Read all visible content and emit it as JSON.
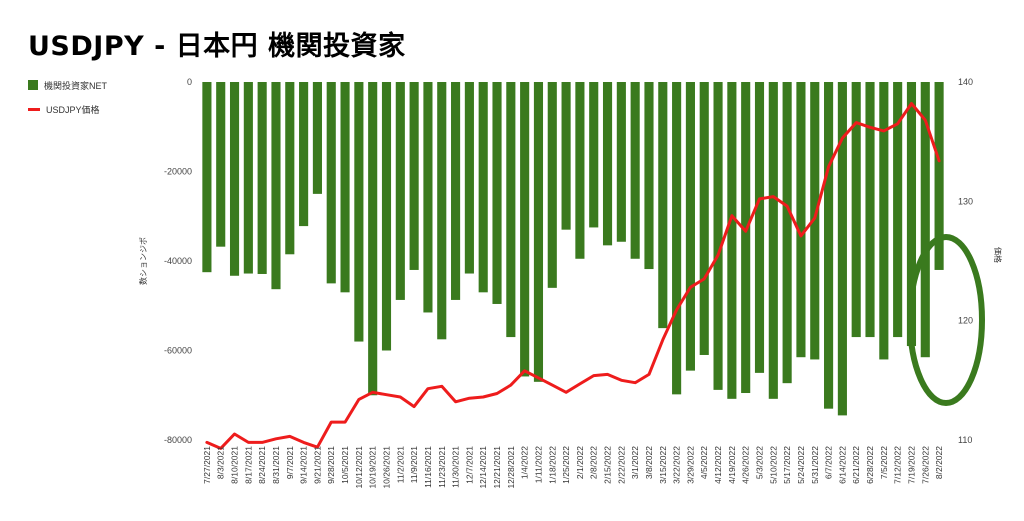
{
  "title": "USDJPY - 日本円 機関投資家",
  "legend": {
    "bar_label": "機関投資家NET",
    "line_label": "USDJPY価格"
  },
  "chart_data": {
    "type": "bar+line",
    "title": "USDJPY - 日本円 機関投資家",
    "ylabel_left": "数ションジポ",
    "ylabel_right": "価格",
    "ylim_left": [
      -80000,
      0
    ],
    "ylim_right": [
      110,
      140
    ],
    "y_ticks_left": [
      "0",
      "-20000",
      "-40000",
      "-60000",
      "-80000"
    ],
    "y_ticks_right": [
      "140",
      "130",
      "120",
      "110"
    ],
    "x_tick_labels": [
      "7/27/2021",
      "8/3/2021",
      "8/10/2021",
      "8/17/2021",
      "8/24/2021",
      "8/31/2021",
      "9/7/2021",
      "9/14/2021",
      "9/21/2021",
      "9/28/2021",
      "10/5/2021",
      "10/12/2021",
      "10/19/2021",
      "10/26/2021",
      "11/2/2021",
      "11/9/2021",
      "11/16/2021",
      "11/23/2021",
      "11/30/2021",
      "12/7/2021",
      "12/14/2021",
      "12/21/2021",
      "12/28/2021",
      "1/4/2022",
      "1/11/2022",
      "1/18/2022",
      "1/25/2022",
      "2/1/2022",
      "2/8/2022",
      "2/15/2022",
      "2/22/2022",
      "3/1/2022",
      "3/8/2022",
      "3/15/2022",
      "3/22/2022",
      "3/29/2022",
      "4/5/2022",
      "4/12/2022",
      "4/19/2022",
      "4/26/2022",
      "5/3/2022",
      "5/10/2022",
      "5/17/2022",
      "5/24/2022",
      "5/31/2022",
      "6/7/2022",
      "6/14/2022",
      "6/21/2022",
      "6/28/2022",
      "7/5/2022",
      "7/12/2022",
      "7/19/2022",
      "7/26/2022",
      "8/2/2022"
    ],
    "series": [
      {
        "name": "機関投資家NET",
        "kind": "bar",
        "color": "#3a7a1e",
        "values": [
          -42500,
          -36800,
          -43300,
          -42800,
          -42900,
          -46300,
          -38500,
          -32200,
          -25000,
          -45000,
          -47000,
          -58000,
          -70000,
          -60000,
          -48700,
          -42000,
          -51500,
          -57500,
          -48700,
          -42800,
          -47000,
          -49600,
          -57000,
          -65800,
          -67000,
          -46000,
          -33000,
          -39500,
          -32500,
          -36500,
          -35700,
          -39500,
          -41800,
          -55000,
          -69800,
          -64500,
          -61000,
          -68800,
          -70800,
          -69500,
          -65000,
          -70800,
          -67300,
          -61500,
          -62000,
          -73000,
          -74500,
          -57000,
          -57000,
          -62000,
          -57000,
          -59000,
          -61500,
          -42000
        ]
      },
      {
        "name": "USDJPY価格",
        "kind": "line",
        "color": "#ee1c1c",
        "values": [
          109.8,
          109.3,
          110.5,
          109.8,
          109.8,
          110.1,
          110.3,
          109.8,
          109.4,
          111.5,
          111.5,
          113.4,
          114.0,
          113.8,
          113.6,
          112.8,
          114.3,
          114.5,
          113.2,
          113.5,
          113.6,
          113.9,
          114.6,
          115.8,
          115.2,
          114.6,
          114.0,
          114.7,
          115.4,
          115.5,
          115.0,
          114.8,
          115.5,
          118.4,
          120.9,
          122.8,
          123.5,
          125.5,
          128.8,
          127.5,
          130.2,
          130.4,
          129.6,
          127.1,
          128.6,
          132.9,
          135.3,
          136.6,
          136.2,
          135.9,
          136.5,
          138.2,
          136.8,
          133.4
        ]
      }
    ],
    "annotation": {
      "shape": "ellipse",
      "color": "#3a7a1e"
    },
    "grid": false,
    "legend_position": "top-left"
  }
}
